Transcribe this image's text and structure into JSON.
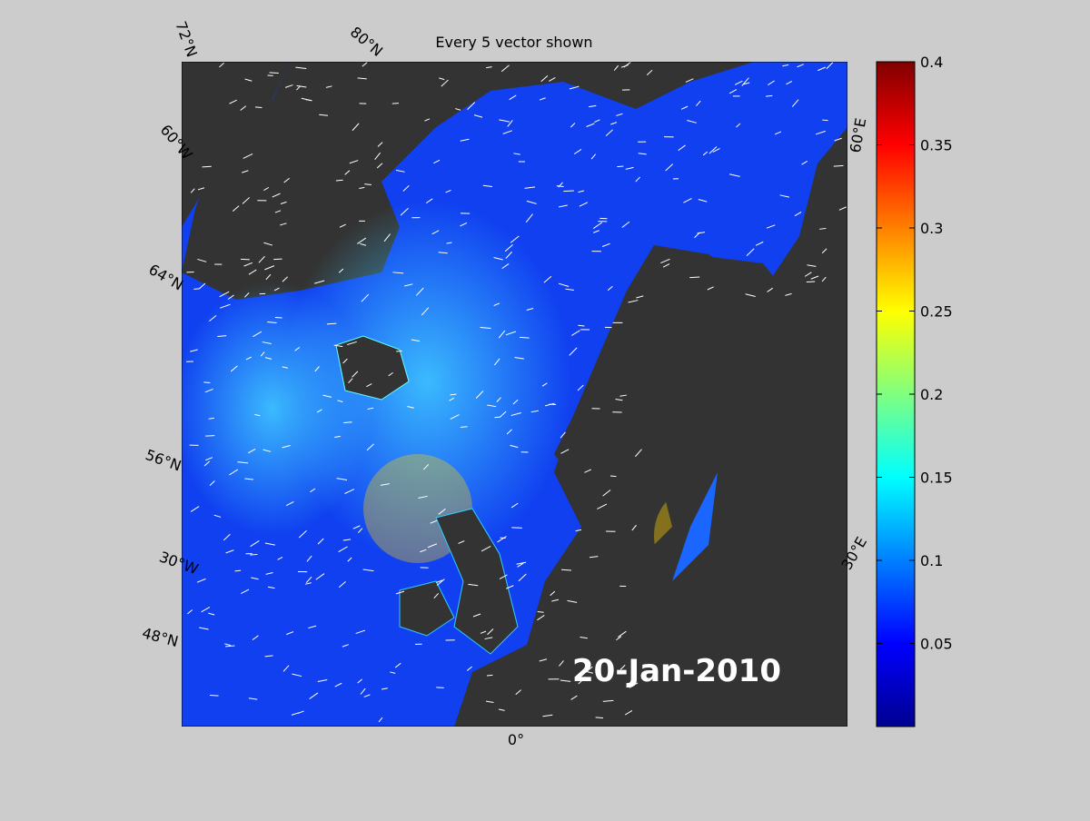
{
  "title": "Every 5 vector shown",
  "date": "20-Jan-2010",
  "map_labels": {
    "lat_72": "72°N",
    "lat_80": "80°N",
    "lon_60w": "60°W",
    "lat_64": "64°N",
    "lat_56": "56°N",
    "lon_30w": "30°W",
    "lat_48": "48°N",
    "lon_0": "0°",
    "lon_30e": "30°E",
    "lon_60e": "60°E"
  },
  "colorbar": {
    "lim": [
      0,
      0.4
    ],
    "ticks": [
      0.05,
      0.1,
      0.15,
      0.2,
      0.25,
      0.3,
      0.35,
      0.4
    ]
  }
}
